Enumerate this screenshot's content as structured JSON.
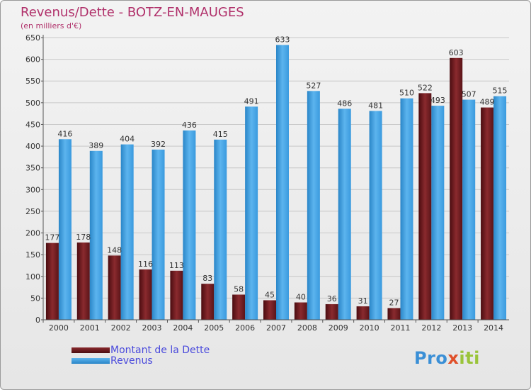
{
  "title": "Revenus/Dette - BOTZ-EN-MAUGES",
  "subtitle": "(en milliers d'€)",
  "legend": {
    "dette": "Montant de la Dette",
    "revenus": "Revenus"
  },
  "logo": {
    "p1": "Pro",
    "x": "x",
    "p2": "iti"
  },
  "colors": {
    "dette": "#7a1e22",
    "revenus": "#3b9ee0",
    "title": "#b0306a",
    "legend_text": "#4a4adc"
  },
  "chart_data": {
    "type": "bar",
    "title": "Revenus/Dette - BOTZ-EN-MAUGES",
    "ylabel": "(en milliers d'€)",
    "xlabel": "",
    "ylim": [
      0,
      650
    ],
    "yticks": [
      0,
      50,
      100,
      150,
      200,
      250,
      300,
      350,
      400,
      450,
      500,
      550,
      600,
      650
    ],
    "grid": true,
    "legend_position": "bottom-left",
    "categories": [
      "2000",
      "2001",
      "2002",
      "2003",
      "2004",
      "2005",
      "2006",
      "2007",
      "2008",
      "2009",
      "2010",
      "2011",
      "2012",
      "2013",
      "2014"
    ],
    "series": [
      {
        "name": "Montant de la Dette",
        "values": [
          177,
          178,
          148,
          116,
          113,
          83,
          58,
          45,
          40,
          36,
          31,
          27,
          522,
          603,
          489
        ]
      },
      {
        "name": "Revenus",
        "values": [
          416,
          389,
          404,
          392,
          436,
          415,
          491,
          633,
          527,
          486,
          481,
          510,
          493,
          507,
          515
        ]
      }
    ]
  }
}
